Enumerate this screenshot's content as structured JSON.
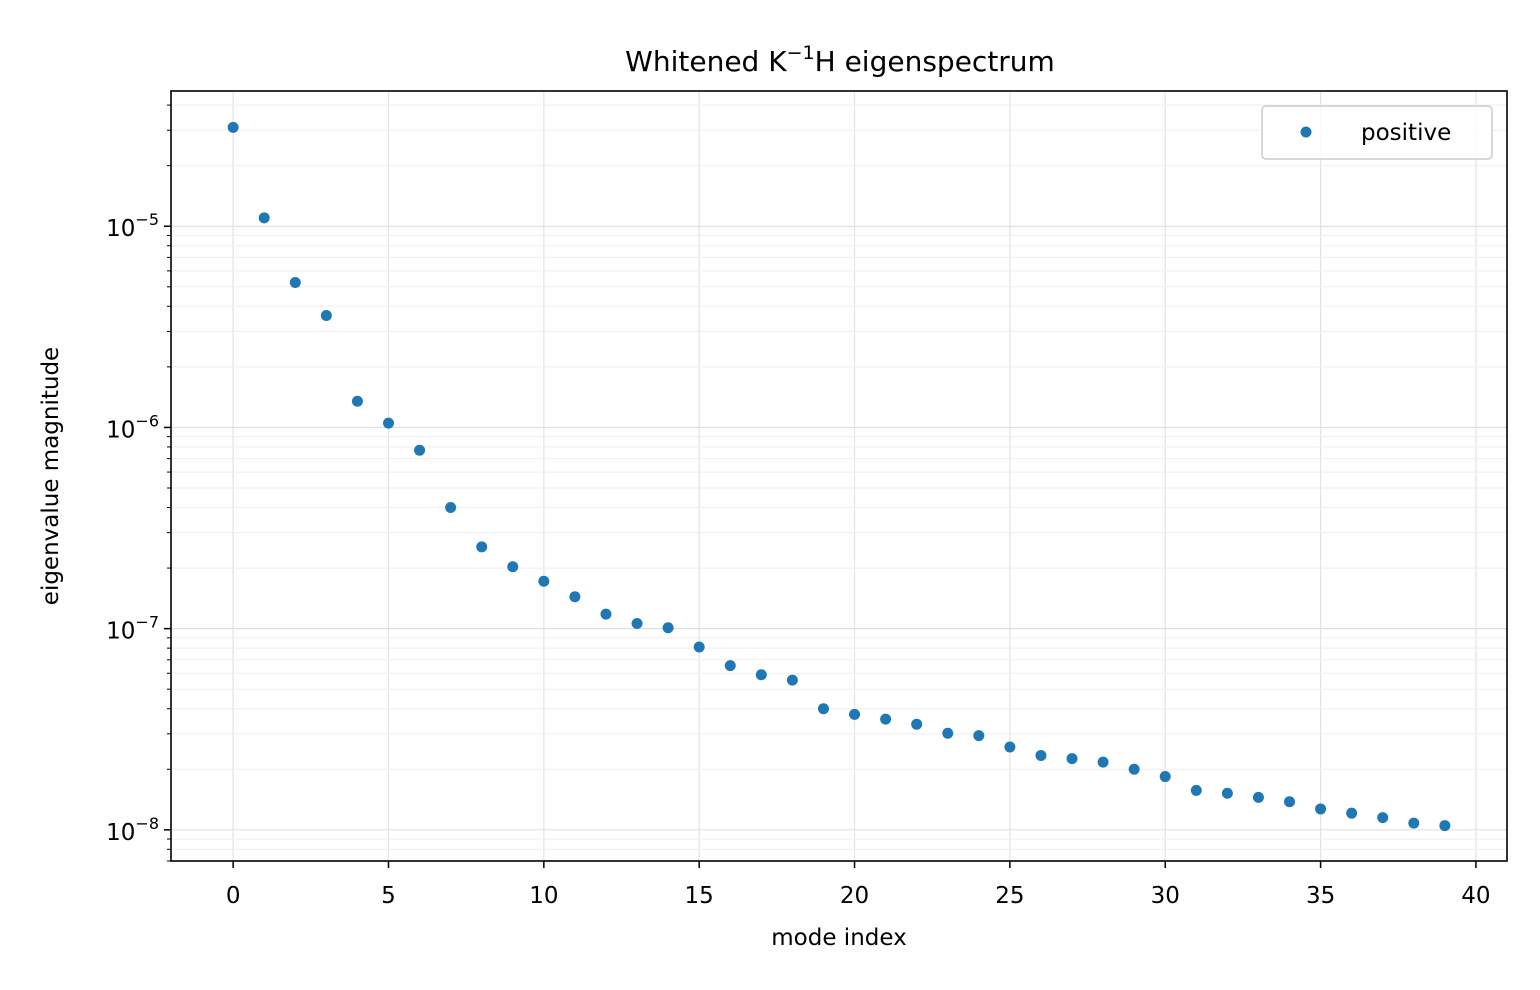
{
  "chart_data": {
    "type": "scatter",
    "title": {
      "main": "Whitened K",
      "sup": "−1",
      "rest": "H eigenspectrum"
    },
    "xlabel": "mode index",
    "ylabel": "eigenvalue magnitude",
    "xlim": [
      -2,
      41
    ],
    "ylim": [
      7e-09,
      4.7e-05
    ],
    "yscale": "log",
    "grid": true,
    "legend_position": "top-right",
    "x_ticks": [
      {
        "value": 0,
        "label": "0"
      },
      {
        "value": 5,
        "label": "5"
      },
      {
        "value": 10,
        "label": "10"
      },
      {
        "value": 15,
        "label": "15"
      },
      {
        "value": 20,
        "label": "20"
      },
      {
        "value": 25,
        "label": "25"
      },
      {
        "value": 30,
        "label": "30"
      },
      {
        "value": 35,
        "label": "35"
      },
      {
        "value": 40,
        "label": "40"
      }
    ],
    "y_ticks": [
      {
        "value": 1e-05,
        "base": "10",
        "exp": "−5"
      },
      {
        "value": 1e-06,
        "base": "10",
        "exp": "−6"
      },
      {
        "value": 1e-07,
        "base": "10",
        "exp": "−7"
      },
      {
        "value": 1e-08,
        "base": "10",
        "exp": "−8"
      }
    ],
    "series": [
      {
        "name": "positive",
        "color": "#1f77b4",
        "x": [
          0,
          1,
          2,
          3,
          4,
          5,
          6,
          7,
          8,
          9,
          10,
          11,
          12,
          13,
          14,
          15,
          16,
          17,
          18,
          19,
          20,
          21,
          22,
          23,
          24,
          25,
          26,
          27,
          28,
          29,
          30,
          31,
          32,
          33,
          34,
          35,
          36,
          37,
          38,
          39
        ],
        "y": [
          3.1e-05,
          1.1e-05,
          5.25e-06,
          3.6e-06,
          1.35e-06,
          1.05e-06,
          7.7e-07,
          4e-07,
          2.55e-07,
          2.03e-07,
          1.72e-07,
          1.44e-07,
          1.18e-07,
          1.06e-07,
          1.01e-07,
          8.1e-08,
          6.55e-08,
          5.9e-08,
          5.55e-08,
          4e-08,
          3.75e-08,
          3.55e-08,
          3.35e-08,
          3.02e-08,
          2.94e-08,
          2.58e-08,
          2.34e-08,
          2.26e-08,
          2.17e-08,
          2e-08,
          1.84e-08,
          1.57e-08,
          1.52e-08,
          1.45e-08,
          1.38e-08,
          1.27e-08,
          1.21e-08,
          1.15e-08,
          1.08e-08,
          1.05e-08
        ]
      }
    ]
  }
}
